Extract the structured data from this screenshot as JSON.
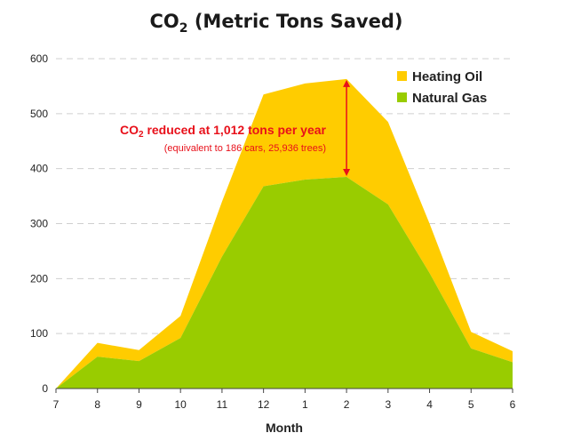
{
  "chart_data": {
    "type": "area",
    "stacked": true,
    "title": {
      "prefix": "CO",
      "subscript": "2",
      "suffix": " (Metric Tons Saved)"
    },
    "xlabel": "Month",
    "ylabel": "",
    "ylim": [
      0,
      600
    ],
    "y_ticks": [
      "0",
      "100",
      "200",
      "300",
      "400",
      "500",
      "600"
    ],
    "y_tick_values": [
      0,
      100,
      200,
      300,
      400,
      500,
      600
    ],
    "categories": [
      "7",
      "8",
      "9",
      "10",
      "11",
      "12",
      "1",
      "2",
      "3",
      "4",
      "5",
      "6"
    ],
    "grid": true,
    "legend_position": "top-right",
    "series": [
      {
        "name": "Natural Gas",
        "color": "#99cc00",
        "values": [
          0,
          58,
          50,
          92,
          240,
          368,
          380,
          385,
          335,
          210,
          73,
          48
        ]
      },
      {
        "name": "Heating Oil",
        "color": "#ffcc00",
        "values": [
          0,
          25,
          20,
          40,
          100,
          167,
          175,
          178,
          150,
          90,
          30,
          20
        ]
      }
    ],
    "totals": [
      0,
      83,
      70,
      132,
      340,
      535,
      555,
      563,
      485,
      300,
      103,
      68
    ],
    "annotation": {
      "prefix": "CO",
      "subscript": "2",
      "headline": " reduced at 1,012 tons per year",
      "detail": "(equivalent to 186 cars, 25,936 trees)",
      "color": "#e8101a",
      "arrow_category": "2",
      "arrow_from_value": 385,
      "arrow_to_value": 563
    }
  }
}
